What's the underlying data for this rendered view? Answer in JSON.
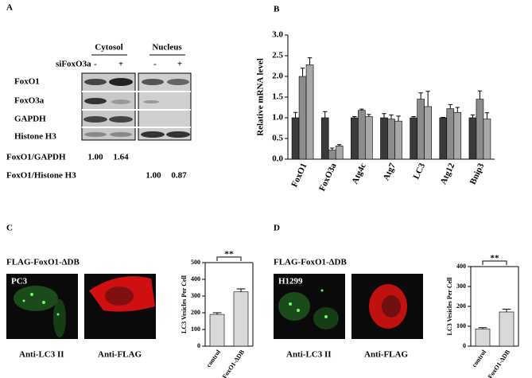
{
  "panel_labels": [
    "A",
    "B",
    "C",
    "D"
  ],
  "panel_a": {
    "compartments": [
      "Cytosol",
      "Nucleus"
    ],
    "treatment": "siFoxO3a",
    "conditions": [
      "-",
      "+",
      "-",
      "+"
    ],
    "rows": [
      "FoxO1",
      "FoxO3a",
      "GAPDH",
      "Histone H3"
    ],
    "ratios": [
      {
        "label": "FoxO1/GAPDH",
        "values": [
          "1.00",
          "1.64"
        ]
      },
      {
        "label": "FoxO1/Histone H3",
        "values": [
          "1.00",
          "0.87"
        ]
      }
    ]
  },
  "panel_c": {
    "construct": "FLAG-FoxO1-ΔDB",
    "cell_line": "PC3",
    "stains": [
      "Anti-LC3 II",
      "Anti-FLAG"
    ]
  },
  "panel_d": {
    "construct": "FLAG-FoxO1-ΔDB",
    "cell_line": "H1299",
    "stains": [
      "Anti-LC3 II",
      "Anti-FLAG"
    ]
  },
  "chart_data": [
    {
      "type": "bar",
      "ylabel": "Relative mRNA level",
      "categories": [
        "FoxO1",
        "FoxO3a",
        "Atg4c",
        "Atg7",
        "LC3",
        "Atg12",
        "Bnip3"
      ],
      "series": [
        {
          "color": "#3a3a3a",
          "values": [
            1.0,
            1.0,
            1.0,
            1.0,
            1.0,
            1.0,
            1.0
          ],
          "errors": [
            0.13,
            0.15,
            0.03,
            0.1,
            0.03,
            0.01,
            0.07
          ]
        },
        {
          "color": "#8c8c8c",
          "values": [
            2.0,
            0.22,
            1.18,
            0.97,
            1.45,
            1.22,
            1.45
          ],
          "errors": [
            0.2,
            0.05,
            0.03,
            0.1,
            0.15,
            0.1,
            0.2
          ]
        },
        {
          "color": "#a8a8a8",
          "values": [
            2.28,
            0.32,
            1.03,
            0.92,
            1.27,
            1.13,
            0.97
          ],
          "errors": [
            0.17,
            0.03,
            0.05,
            0.12,
            0.37,
            0.12,
            0.15
          ]
        }
      ],
      "ylim": [
        0,
        3
      ],
      "yticks": [
        {
          "value": 0,
          "label": "0.0"
        },
        {
          "value": 0.5,
          "label": "0.5"
        },
        {
          "value": 1,
          "label": "1.0"
        },
        {
          "value": 1.5,
          "label": "1.5"
        },
        {
          "value": 2,
          "label": "2.0"
        },
        {
          "value": 2.5,
          "label": "2.5"
        },
        {
          "value": 3,
          "label": "3.0"
        }
      ]
    },
    {
      "type": "bar",
      "ylabel": "LC3 Vesicles Per Cell",
      "categories": [
        "control",
        "FoxO1-ΔDB"
      ],
      "series": [
        {
          "color": "#d9d9d9",
          "values": [
            190,
            325
          ],
          "errors": [
            10,
            18
          ]
        }
      ],
      "ylim": [
        0,
        500
      ],
      "yticks": [
        0,
        100,
        200,
        300,
        400,
        500
      ],
      "annotation": "**"
    },
    {
      "type": "bar",
      "ylabel": "LC3 Vesicles Per Cell",
      "categories": [
        "control",
        "FoxO1-ΔDB"
      ],
      "series": [
        {
          "color": "#d9d9d9",
          "values": [
            87,
            172
          ],
          "errors": [
            6,
            14
          ]
        }
      ],
      "ylim": [
        0,
        400
      ],
      "yticks": [
        0,
        100,
        200,
        300,
        400
      ],
      "annotation": "**"
    }
  ]
}
